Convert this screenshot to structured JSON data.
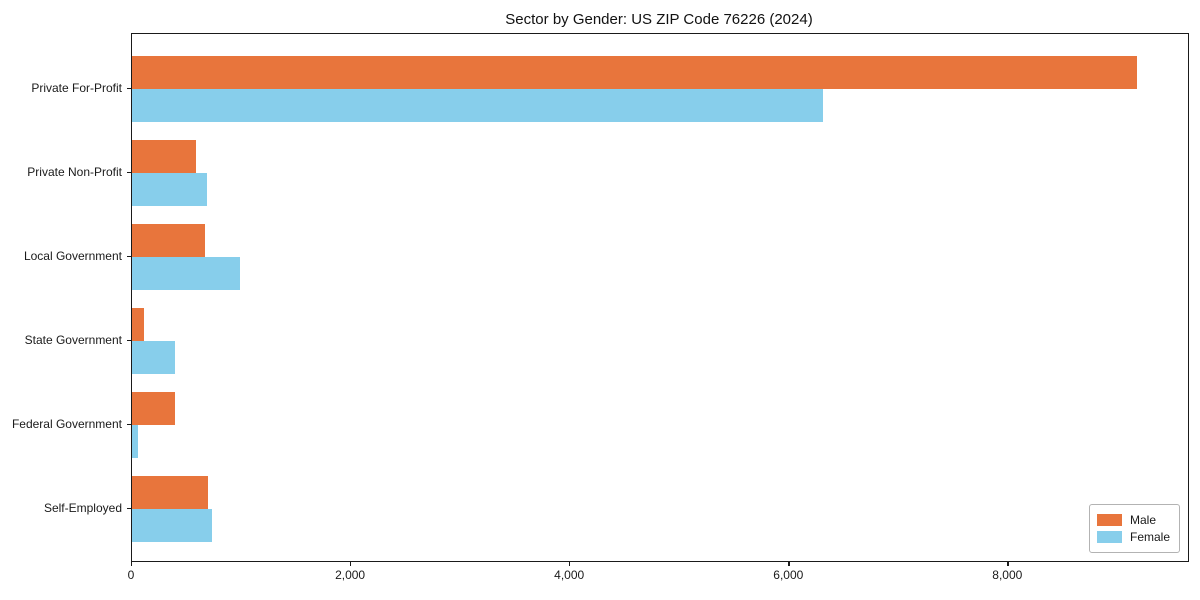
{
  "figure": {
    "background": "#ffffff"
  },
  "chart_data": {
    "type": "bar",
    "orientation": "horizontal",
    "title": "Sector by Gender: US ZIP Code 76226 (2024)",
    "categories": [
      "Private For-Profit",
      "Private Non-Profit",
      "Local Government",
      "State Government",
      "Federal Government",
      "Self-Employed"
    ],
    "series": [
      {
        "name": "Male",
        "color": "#e8753c",
        "values": [
          9170,
          585,
          665,
          110,
          390,
          695
        ]
      },
      {
        "name": "Female",
        "color": "#87ceeb",
        "values": [
          6310,
          685,
          985,
          395,
          50,
          730
        ]
      }
    ],
    "xlabel": "",
    "ylabel": "",
    "xlim": [
      0,
      9640
    ],
    "xticks": [
      0,
      2000,
      4000,
      6000,
      8000
    ],
    "xtick_labels": [
      "0",
      "2,000",
      "4,000",
      "6,000",
      "8,000"
    ],
    "grid": false,
    "legend": {
      "position": "lower right",
      "entries": [
        "Male",
        "Female"
      ]
    }
  }
}
